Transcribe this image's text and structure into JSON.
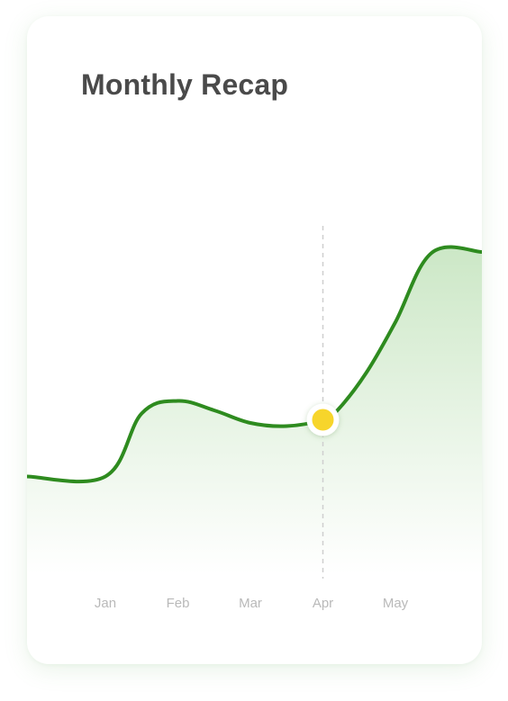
{
  "header": {
    "title": "Monthly Recap"
  },
  "chart_data": {
    "type": "area",
    "title": "Monthly Recap",
    "categories": [
      "Jan",
      "Feb",
      "Mar",
      "Apr",
      "May"
    ],
    "x_axis_ticks": [
      "Jan",
      "Feb",
      "Mar",
      "Apr",
      "May"
    ],
    "series": [
      {
        "x": [
          0,
          0.5,
          1.0,
          1.5,
          2.0,
          2.5,
          3.0,
          3.2,
          3.6,
          4.0,
          4.5
        ],
        "values": [
          31,
          51,
          55,
          52,
          48,
          47,
          49,
          52,
          64,
          80,
          102
        ],
        "color": "#2e8b1f"
      }
    ],
    "highlight": {
      "category": "Apr",
      "value": 49,
      "marker_color": "#f7d52b"
    },
    "fill_color": "#c9e6c3",
    "ylim": [
      0,
      140
    ],
    "grid": false,
    "legend": "none"
  }
}
